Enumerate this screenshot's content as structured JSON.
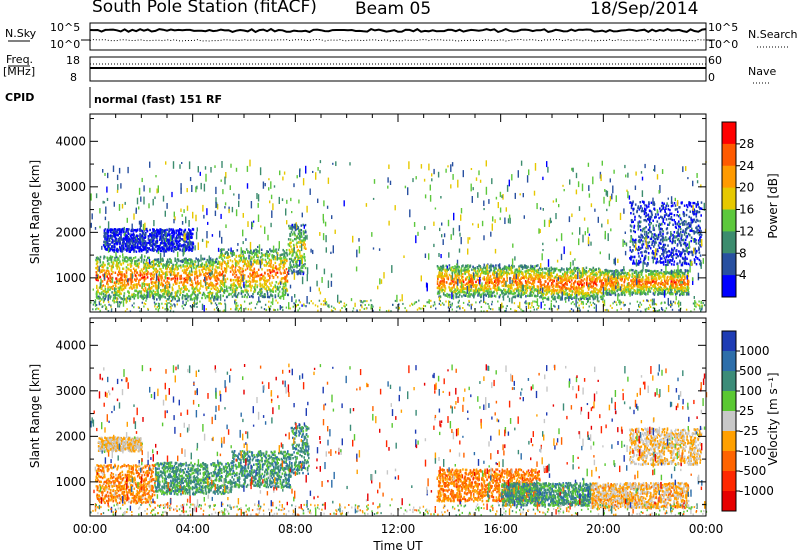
{
  "header": {
    "station": "South Pole Station (fitACF)",
    "beam": "Beam 05",
    "date": "18/Sep/2014"
  },
  "top_panels": {
    "nsky_label": "N.Sky",
    "nsky_ticks": [
      "10^5",
      "10^0"
    ],
    "nsearch_label": "N.Search",
    "nsearch_ticks": [
      "10^5",
      "10^0"
    ],
    "freq_label": "Freq.",
    "freq_unit": "[MHz]",
    "freq_ticks": [
      "18",
      "8"
    ],
    "nave_label": "Nave",
    "nave_ticks": [
      "60",
      "0"
    ],
    "cpid_label": "CPID",
    "cpid_text": "normal (fast) 151 RF"
  },
  "chart_data": [
    {
      "type": "heatmap",
      "name": "power-panel",
      "xlabel": "",
      "ylabel": "Slant Range [km]",
      "ylim": [
        250,
        4600
      ],
      "xlim": [
        0,
        24
      ],
      "yticks": [
        1000,
        2000,
        3000,
        4000
      ],
      "colorbar": {
        "label": "Power [dB]",
        "ticks": [
          "28",
          "24",
          "20",
          "16",
          "12",
          "8",
          "4"
        ],
        "colors": [
          "#ff0000",
          "#ff5a00",
          "#ff9a00",
          "#e6c800",
          "#5dc83c",
          "#3c8c6e",
          "#2850a0",
          "#0000ff"
        ]
      },
      "bands": [
        {
          "t0": 0.2,
          "t1": 2.3,
          "r0": 550,
          "r1": 1500,
          "level": 0.85
        },
        {
          "t0": 2.3,
          "t1": 5.0,
          "r0": 550,
          "r1": 1450,
          "level": 0.8
        },
        {
          "t0": 5.0,
          "t1": 7.7,
          "r0": 600,
          "r1": 1650,
          "level": 0.8
        },
        {
          "t0": 7.7,
          "t1": 8.4,
          "r0": 1100,
          "r1": 2200,
          "level": 0.6
        },
        {
          "t0": 13.5,
          "t1": 17.5,
          "r0": 600,
          "r1": 1300,
          "level": 0.8
        },
        {
          "t0": 17.5,
          "t1": 20.0,
          "r0": 550,
          "r1": 1250,
          "level": 0.85
        },
        {
          "t0": 20.0,
          "t1": 23.3,
          "r0": 650,
          "r1": 1200,
          "level": 0.8
        },
        {
          "t0": 0.5,
          "t1": 4.0,
          "r0": 1600,
          "r1": 2100,
          "level": 0.15
        },
        {
          "t0": 21.0,
          "t1": 23.8,
          "r0": 1300,
          "r1": 2700,
          "level": 0.2
        }
      ]
    },
    {
      "type": "heatmap",
      "name": "velocity-panel",
      "xlabel": "Time UT",
      "ylabel": "Slant Range [km]",
      "ylim": [
        250,
        4600
      ],
      "xlim": [
        0,
        24
      ],
      "yticks": [
        1000,
        2000,
        3000,
        4000
      ],
      "xticks": [
        "00:00",
        "04:00",
        "08:00",
        "12:00",
        "16:00",
        "20:00",
        "00:00"
      ],
      "colorbar": {
        "label": "Velocity [m s⁻¹]",
        "ticks": [
          "1000",
          "500",
          "100",
          "25",
          "-25",
          "-100",
          "-500",
          "-1000"
        ],
        "colors": [
          "#1e3cb4",
          "#2d6eaa",
          "#3c8c78",
          "#5ac832",
          "#c8c8c8",
          "#ffa000",
          "#ff6400",
          "#ff2800",
          "#e60000"
        ]
      },
      "bands": [
        {
          "t0": 0.2,
          "t1": 2.5,
          "r0": 550,
          "r1": 1400,
          "level": 0.35
        },
        {
          "t0": 2.5,
          "t1": 5.5,
          "r0": 750,
          "r1": 1450,
          "level": 0.7
        },
        {
          "t0": 5.5,
          "t1": 7.8,
          "r0": 900,
          "r1": 1700,
          "level": 0.72
        },
        {
          "t0": 7.8,
          "t1": 8.5,
          "r0": 1200,
          "r1": 2300,
          "level": 0.72
        },
        {
          "t0": 0.3,
          "t1": 2.0,
          "r0": 1700,
          "r1": 2000,
          "level": 0.45
        },
        {
          "t0": 13.5,
          "t1": 17.5,
          "r0": 600,
          "r1": 1300,
          "level": 0.32
        },
        {
          "t0": 16.0,
          "t1": 19.5,
          "r0": 500,
          "r1": 1000,
          "level": 0.72
        },
        {
          "t0": 19.5,
          "t1": 23.3,
          "r0": 450,
          "r1": 1000,
          "level": 0.42
        },
        {
          "t0": 21.0,
          "t1": 23.8,
          "r0": 1400,
          "r1": 2200,
          "level": 0.45
        }
      ]
    }
  ]
}
